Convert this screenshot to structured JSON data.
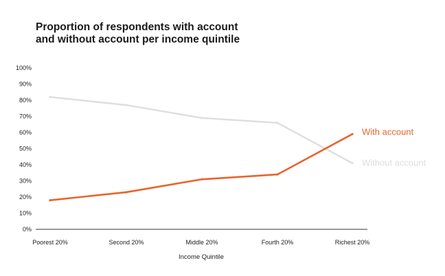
{
  "chart_data": {
    "type": "line",
    "title": [
      "Proportion of respondents with account",
      "and without account per income quintile"
    ],
    "xlabel": "Income Quintile",
    "ylabel": "",
    "categories": [
      "Poorest 20%",
      "Second 20%",
      "Middle 20%",
      "Fourth 20%",
      "Richest 20%"
    ],
    "yticks": [
      "0%",
      "10%",
      "20%",
      "30%",
      "40%",
      "50%",
      "60%",
      "70%",
      "80%",
      "90%",
      "100%"
    ],
    "ylim": [
      0,
      100
    ],
    "grid": false,
    "series": [
      {
        "name": "Without account",
        "values": [
          82,
          77,
          69,
          66,
          41
        ],
        "color": "#dedede"
      },
      {
        "name": "With account",
        "values": [
          18,
          23,
          31,
          34,
          59
        ],
        "color": "#e8642c"
      }
    ]
  }
}
